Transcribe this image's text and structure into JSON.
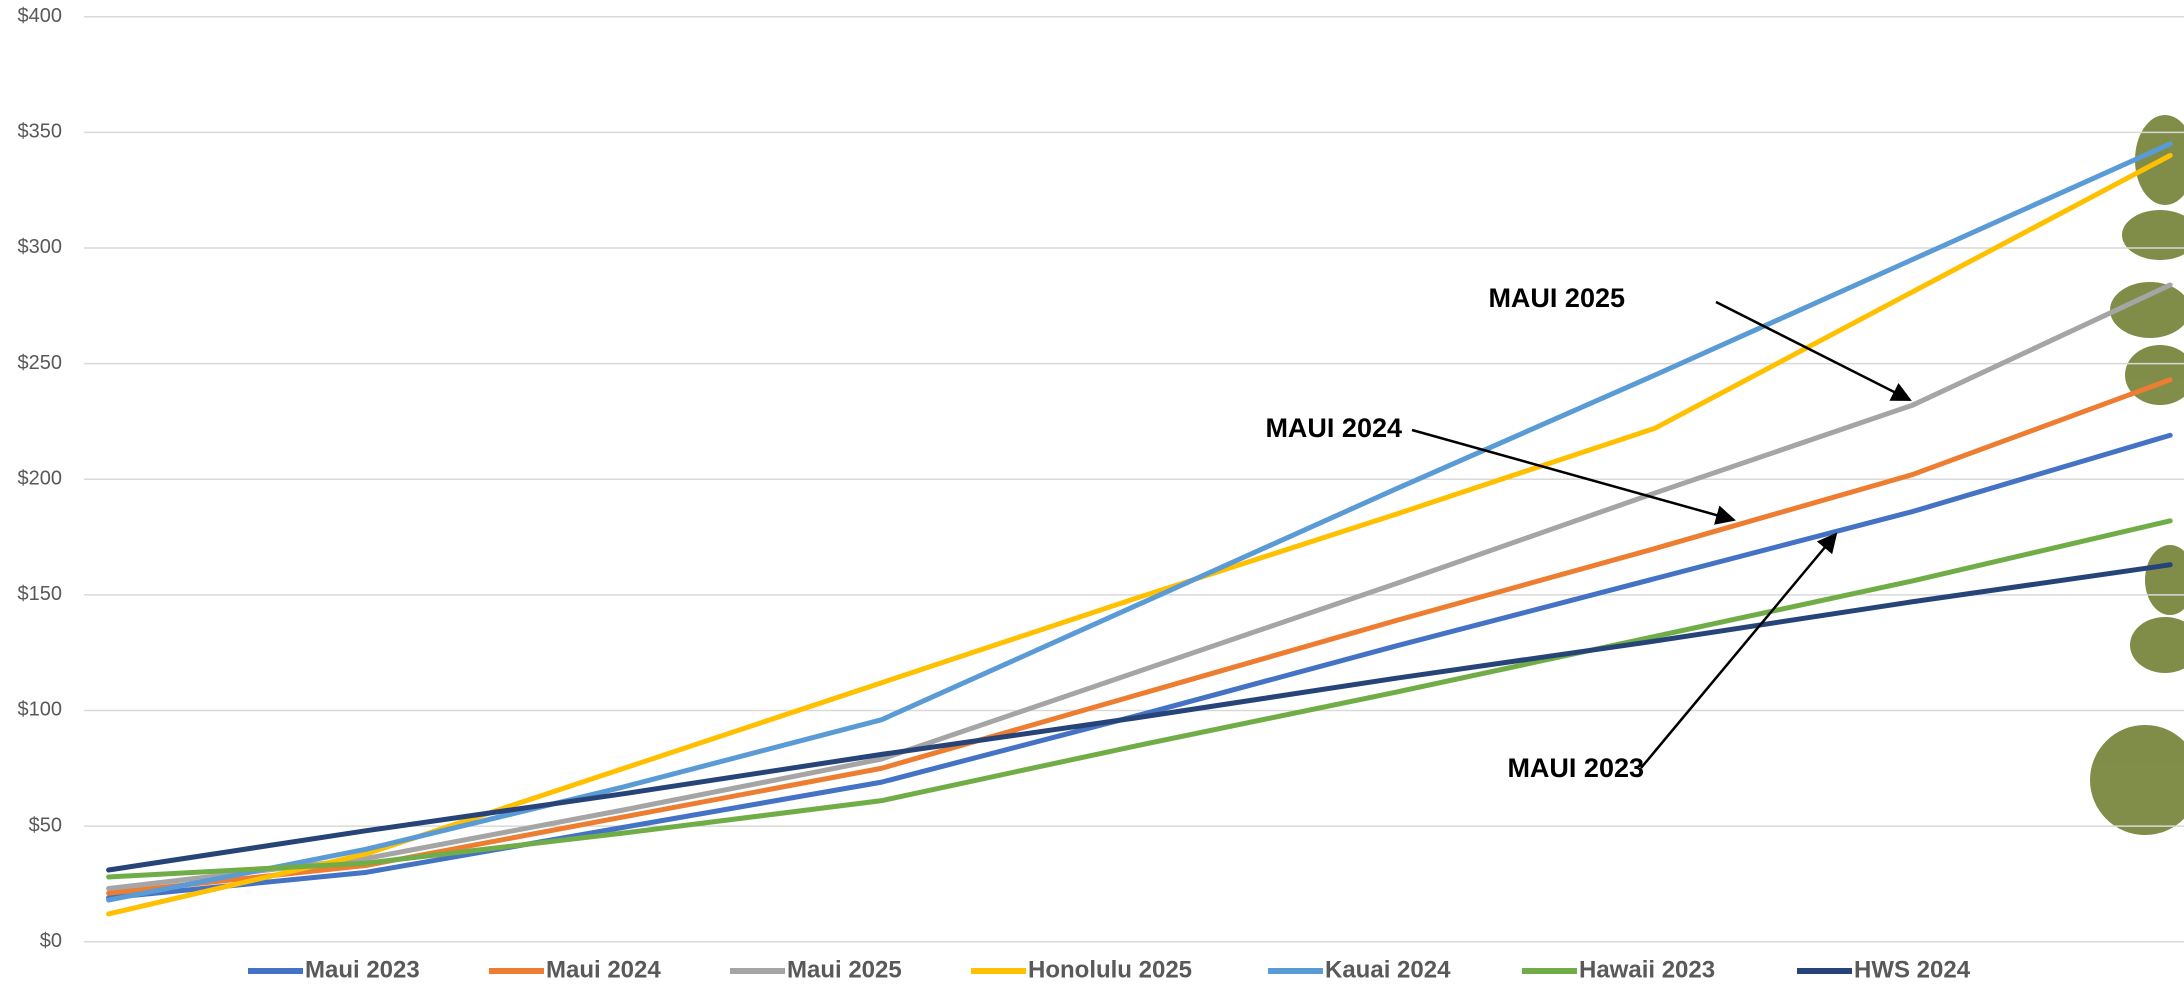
{
  "chart_data": {
    "type": "line",
    "categories": [
      null,
      null,
      null,
      null,
      null,
      null,
      null,
      null,
      null
    ],
    "series": [
      {
        "name": "Maui 2023",
        "color": "#4472c4",
        "values": [
          19,
          30,
          49.5,
          69,
          98,
          128,
          157,
          186,
          219
        ]
      },
      {
        "name": "Maui 2024",
        "color": "#ed7d31",
        "values": [
          21,
          33,
          54,
          75,
          107,
          139,
          170,
          202,
          243
        ]
      },
      {
        "name": "Maui 2025",
        "color": "#a5a5a5",
        "values": [
          23,
          36,
          57,
          79,
          117,
          155,
          194,
          232,
          284
        ]
      },
      {
        "name": "Honolulu 2025",
        "color": "#ffc000",
        "values": [
          12,
          38,
          75,
          112,
          149,
          185,
          222,
          281,
          340
        ]
      },
      {
        "name": "Kauai 2024",
        "color": "#5b9bd5",
        "values": [
          18,
          40,
          67,
          96,
          146,
          196,
          245,
          295,
          345
        ]
      },
      {
        "name": "Hawaii 2023",
        "color": "#70ad47",
        "values": [
          28,
          34,
          47,
          61,
          85,
          108,
          132,
          156,
          182
        ]
      },
      {
        "name": "HWS 2024",
        "color": "#264478",
        "values": [
          31,
          48,
          64,
          81,
          97,
          114,
          130,
          147,
          163
        ]
      }
    ],
    "ylim": [
      0,
      400
    ],
    "yticks": [
      {
        "value": 0,
        "label": "$0"
      },
      {
        "value": 50,
        "label": "$50"
      },
      {
        "value": 100,
        "label": "$100"
      },
      {
        "value": 150,
        "label": "$150"
      },
      {
        "value": 200,
        "label": "$200"
      },
      {
        "value": 250,
        "label": "$250"
      },
      {
        "value": 300,
        "label": "$300"
      },
      {
        "value": 350,
        "label": "$350"
      },
      {
        "value": 400,
        "label": "$400"
      }
    ],
    "grid": true,
    "annotations": [
      "MAUI 2025",
      "MAUI 2024",
      "MAUI 2023"
    ]
  }
}
